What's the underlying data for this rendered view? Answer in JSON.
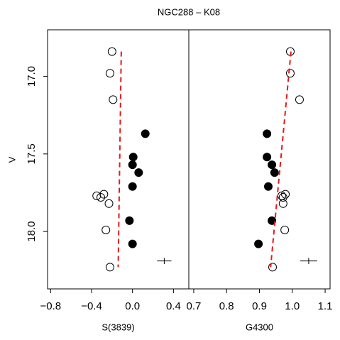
{
  "title": "NGC288 – K08",
  "chart_data": [
    {
      "type": "scatter",
      "xlabel": "S(3839)",
      "ylabel": "V",
      "xlim": [
        -0.83,
        0.55
      ],
      "ylim": [
        18.37,
        16.7
      ],
      "xticks": [
        {
          "value": -0.8,
          "label": "−0.8"
        },
        {
          "value": -0.4,
          "label": "−0.4"
        },
        {
          "value": 0,
          "label": "0.0"
        },
        0.4
      ],
      "yticks": [
        {
          "value": 17,
          "label": "17.0"
        },
        17.5,
        {
          "value": 18,
          "label": "18.0"
        }
      ],
      "series": [
        {
          "color": "#000000",
          "filled": false,
          "x": [
            -0.2,
            -0.22,
            -0.19,
            -0.35,
            -0.28,
            -0.31,
            -0.23,
            -0.26,
            -0.22
          ],
          "values": [
            16.84,
            16.98,
            17.15,
            17.77,
            17.76,
            17.78,
            17.82,
            17.99,
            18.23
          ]
        },
        {
          "color": "#000000",
          "filled": true,
          "x": [
            0.125,
            0.007,
            0.0,
            0.06,
            0.0,
            -0.03,
            0.0
          ],
          "values": [
            17.37,
            17.52,
            17.57,
            17.62,
            17.71,
            17.93,
            18.08
          ]
        }
      ],
      "fit_line": {
        "color": "#e41a1c",
        "x": [
          -0.11,
          -0.14
        ],
        "values": [
          16.84,
          18.23
        ]
      },
      "error_bar": {
        "x": 0.31,
        "values": 18.19,
        "xerr": 0.07,
        "yerr": 0.02
      }
    },
    {
      "type": "scatter",
      "xlabel": "G4300",
      "xlim": [
        0.685,
        1.115
      ],
      "ylim": [
        18.37,
        16.7
      ],
      "xticks": [
        0.7,
        0.8,
        0.9,
        {
          "value": 1,
          "label": "1.0"
        },
        1.1
      ],
      "series": [
        {
          "color": "#000000",
          "filled": false,
          "x": [
            0.994,
            0.994,
            1.022,
            0.968,
            0.979,
            0.972,
            0.972,
            0.977,
            0.94
          ],
          "values": [
            16.84,
            16.98,
            17.15,
            17.77,
            17.76,
            17.78,
            17.82,
            17.99,
            18.23
          ]
        },
        {
          "color": "#000000",
          "filled": true,
          "x": [
            0.923,
            0.923,
            0.938,
            0.946,
            0.927,
            0.938,
            0.897
          ],
          "values": [
            17.37,
            17.52,
            17.57,
            17.62,
            17.71,
            17.93,
            18.08
          ]
        }
      ],
      "fit_line": {
        "color": "#e41a1c",
        "x": [
          0.996,
          0.934
        ],
        "values": [
          16.84,
          18.23
        ]
      },
      "error_bar": {
        "x": 1.05,
        "values": 18.19,
        "xerr": 0.026,
        "yerr": 0.02
      }
    }
  ]
}
